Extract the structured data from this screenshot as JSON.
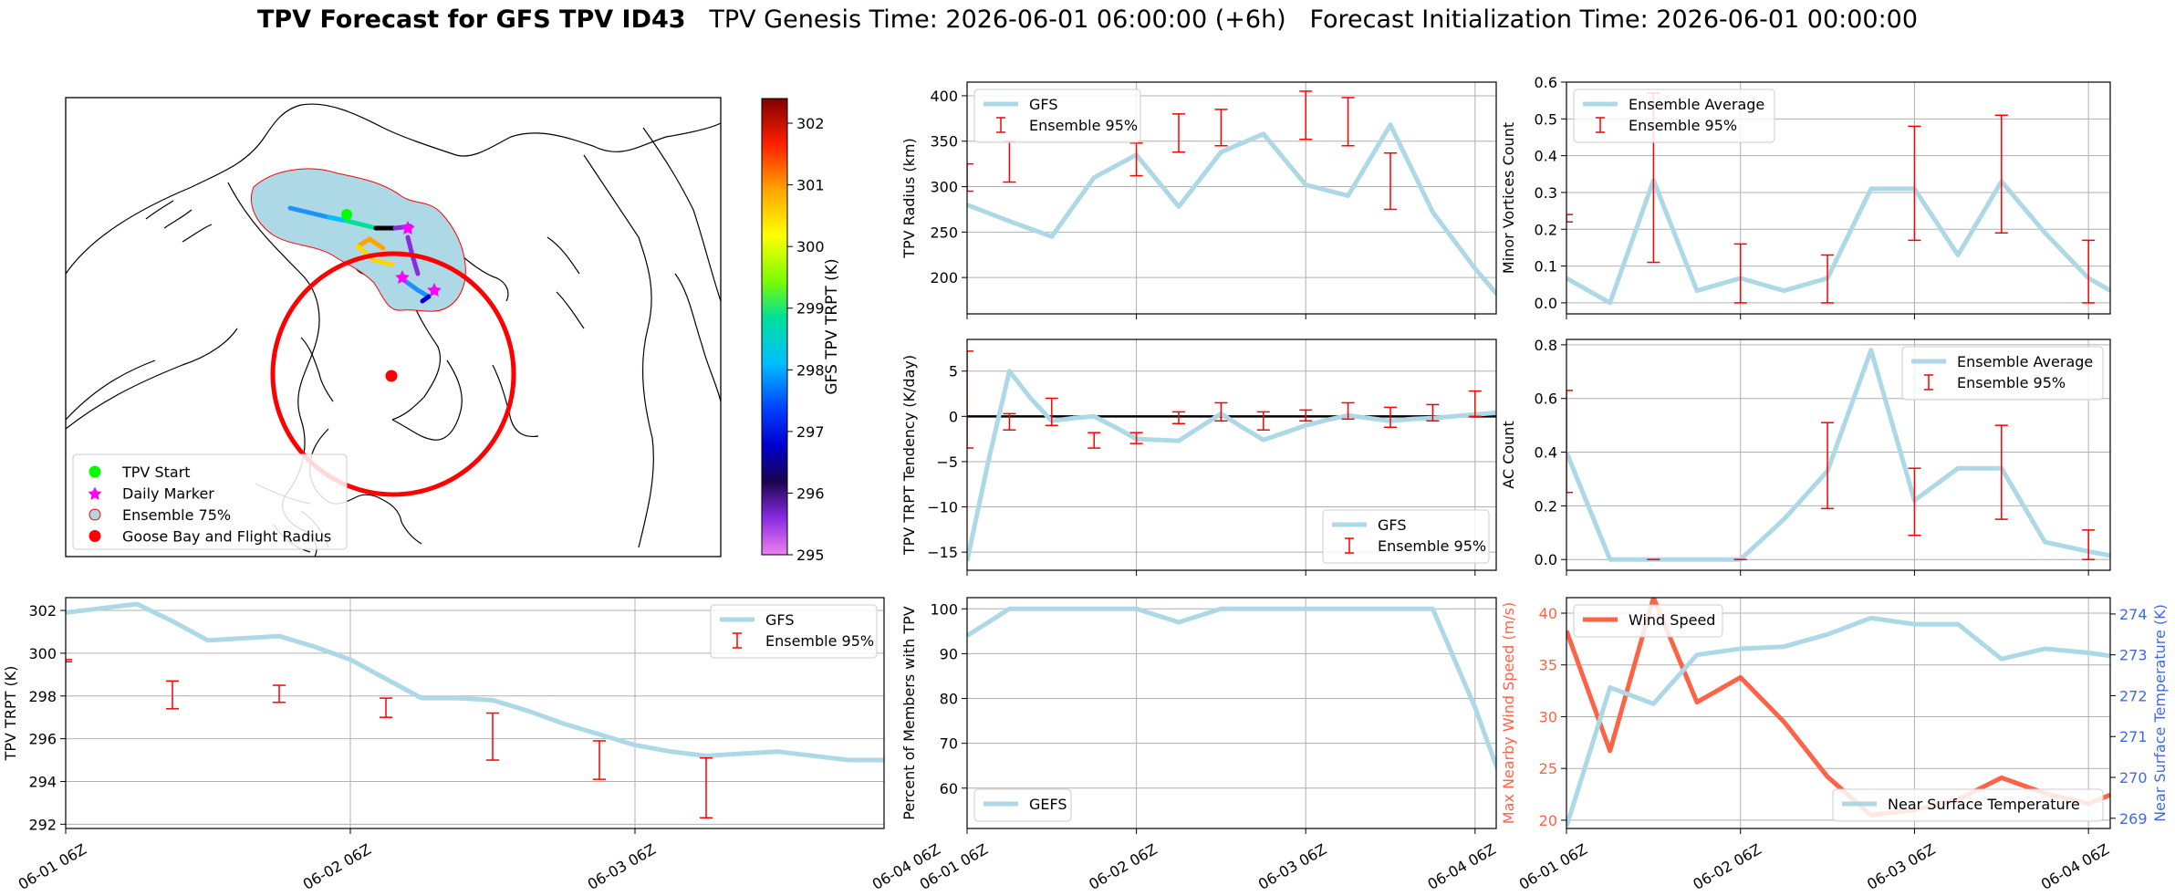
{
  "figure": {
    "title_bold": "TPV Forecast for GFS TPV ID43",
    "title_rest": "   TPV Genesis Time: 2026-06-01 06:00:00 (+6h)   Forecast Initialization Time: 2026-06-01 00:00:00"
  },
  "map": {
    "colorbar_label": "GFS TPV TRPT (K)",
    "colorbar_ticks": [
      "302",
      "301",
      "300",
      "299",
      "298",
      "297",
      "296",
      "295"
    ],
    "colorbar_range": [
      295,
      302.4
    ],
    "legend": [
      {
        "label": "TPV Start",
        "color": "#00ff00",
        "marker": "circle"
      },
      {
        "label": "Daily Marker",
        "color": "#ff00ff",
        "marker": "star"
      },
      {
        "label": "Ensemble 75%",
        "color": "#add8e6",
        "marker": "ring"
      },
      {
        "label": "Goose Bay and Flight Radius",
        "color": "#ff0000",
        "marker": "circle"
      }
    ]
  },
  "chart_data": [
    {
      "id": "trpt",
      "type": "line",
      "ylabel": "TPV TRPT (K)",
      "ylim": [
        291.8,
        302.6
      ],
      "yticks": [
        292,
        294,
        296,
        298,
        300,
        302
      ],
      "xticks": [
        "06-01 06Z",
        "06-02 06Z",
        "06-03 06Z",
        "06-04 06Z"
      ],
      "xlim": [
        0,
        11.5
      ],
      "legend": {
        "position": "top-right",
        "line": "GFS",
        "errorbar": "Ensemble 95%"
      },
      "series": [
        {
          "name": "GFS",
          "color": "#add8e6",
          "x": [
            0,
            0.5,
            1,
            1.5,
            2,
            2.5,
            3,
            3.5,
            4,
            4.5,
            5,
            5.5,
            6,
            6.5,
            7,
            7.5,
            8,
            8.5,
            9,
            9.5,
            10,
            10.5,
            11,
            11.5
          ],
          "values": [
            301.9,
            302.1,
            302.3,
            301.5,
            300.6,
            300.7,
            300.8,
            300.3,
            299.7,
            298.8,
            297.9,
            297.9,
            297.8,
            297.3,
            296.7,
            296.2,
            295.7,
            295.4,
            295.2,
            295.3,
            295.4,
            295.2,
            295.0,
            295.0
          ]
        }
      ],
      "errorbars": [
        {
          "x": 0,
          "lo": 299.6,
          "hi": 299.7
        },
        {
          "x": 3,
          "lo": 297.4,
          "hi": 298.7
        },
        {
          "x": 6,
          "lo": 297.7,
          "hi": 298.5
        },
        {
          "x": 9,
          "lo": 297.0,
          "hi": 297.9
        },
        {
          "x": 12,
          "lo": 295.0,
          "hi": 297.2
        },
        {
          "x": 15,
          "lo": 294.1,
          "hi": 295.9
        },
        {
          "x": 18,
          "lo": 292.3,
          "hi": 295.1
        }
      ]
    },
    {
      "id": "radius",
      "type": "line",
      "ylabel": "TPV Radius (km)",
      "ylim": [
        160,
        415
      ],
      "yticks": [
        200,
        250,
        300,
        350,
        400
      ],
      "xlim": [
        0,
        12.5
      ],
      "legend": {
        "position": "top-left",
        "line": "GFS",
        "errorbar": "Ensemble 95%"
      },
      "series": [
        {
          "name": "GFS",
          "color": "#add8e6",
          "x": [
            0,
            1,
            2,
            3,
            4,
            5,
            6,
            7,
            8,
            9,
            10,
            11,
            12,
            13
          ],
          "values": [
            280,
            262,
            245,
            310,
            335,
            278,
            338,
            358,
            302,
            290,
            368,
            272,
            210,
            155
          ]
        }
      ],
      "errorbars": [
        {
          "x": 0,
          "lo": 295,
          "hi": 325
        },
        {
          "x": 1,
          "lo": 305,
          "hi": 350
        },
        {
          "x": 4,
          "lo": 312,
          "hi": 348
        },
        {
          "x": 5,
          "lo": 338,
          "hi": 380
        },
        {
          "x": 6,
          "lo": 345,
          "hi": 385
        },
        {
          "x": 8,
          "lo": 352,
          "hi": 405
        },
        {
          "x": 9,
          "lo": 345,
          "hi": 398
        },
        {
          "x": 10,
          "lo": 275,
          "hi": 337
        }
      ]
    },
    {
      "id": "tendency",
      "type": "line",
      "ylabel": "TPV TRPT Tendency (K/day)",
      "ylim": [
        -17,
        8.5
      ],
      "yticks": [
        -15,
        -10,
        -5,
        0,
        5
      ],
      "xlim": [
        0,
        12.5
      ],
      "legend": {
        "position": "bottom-right",
        "line": "GFS",
        "errorbar": "Ensemble 95%"
      },
      "series": [
        {
          "name": "GFS",
          "color": "#add8e6",
          "x": [
            0,
            0.5,
            1,
            1.5,
            2,
            2.5,
            3,
            3.5,
            4,
            4.5,
            5,
            5.5,
            6,
            6.5,
            7,
            7.5,
            8,
            8.5,
            9,
            9.5,
            10,
            10.5,
            11,
            11.5,
            12,
            12.5
          ],
          "values": [
            -16,
            -5,
            5,
            2,
            -0.5,
            -0.2,
            0,
            -1.2,
            -2.5,
            -2.6,
            -2.7,
            -1.2,
            0.3,
            -1.2,
            -2.6,
            -1.8,
            -1,
            -0.4,
            0.1,
            -0.2,
            -0.5,
            -0.3,
            -0.2,
            0,
            0.2,
            0.4
          ]
        }
      ],
      "errorbars": [
        {
          "x": 0,
          "lo": -3.5,
          "hi": 7.2
        },
        {
          "x": 1,
          "lo": -1.5,
          "hi": 0.3
        },
        {
          "x": 2,
          "lo": -1.0,
          "hi": 2.0
        },
        {
          "x": 3,
          "lo": -3.5,
          "hi": -1.8
        },
        {
          "x": 4,
          "lo": -3.0,
          "hi": -1.8
        },
        {
          "x": 5,
          "lo": -0.8,
          "hi": 0.5
        },
        {
          "x": 6,
          "lo": -0.5,
          "hi": 1.5
        },
        {
          "x": 7,
          "lo": -1.5,
          "hi": 0.5
        },
        {
          "x": 8,
          "lo": -0.5,
          "hi": 0.7
        },
        {
          "x": 9,
          "lo": -0.3,
          "hi": 1.5
        },
        {
          "x": 10,
          "lo": -1.2,
          "hi": 1.0
        },
        {
          "x": 11,
          "lo": -0.5,
          "hi": 1.3
        },
        {
          "x": 12,
          "lo": 0.0,
          "hi": 2.8
        }
      ]
    },
    {
      "id": "percent",
      "type": "line",
      "ylabel": "Percent of Members with TPV",
      "ylim": [
        51,
        102.5
      ],
      "yticks": [
        60,
        70,
        80,
        90,
        100
      ],
      "xlim": [
        0,
        12.5
      ],
      "legend": {
        "position": "bottom-left",
        "line": "GEFS"
      },
      "series": [
        {
          "name": "GEFS",
          "color": "#add8e6",
          "x": [
            0,
            1,
            2,
            3,
            4,
            5,
            6,
            7,
            8,
            9,
            10,
            11,
            12,
            13
          ],
          "values": [
            94,
            100,
            100,
            100,
            100,
            97,
            100,
            100,
            100,
            100,
            100,
            100,
            78,
            52
          ]
        }
      ],
      "errorbars": []
    },
    {
      "id": "minor",
      "type": "line",
      "ylabel": "Minor Vortices Count",
      "ylim": [
        -0.03,
        0.6
      ],
      "yticks": [
        0.0,
        0.1,
        0.2,
        0.3,
        0.4,
        0.5,
        0.6
      ],
      "xlim": [
        0,
        12.5
      ],
      "legend": {
        "position": "top-left",
        "line": "Ensemble Average",
        "errorbar": "Ensemble 95%"
      },
      "series": [
        {
          "name": "Ensemble Average",
          "color": "#add8e6",
          "x": [
            0,
            1,
            2,
            3,
            4,
            5,
            6,
            7,
            8,
            9,
            10,
            11,
            12,
            13
          ],
          "values": [
            0.067,
            0,
            0.333,
            0.033,
            0.067,
            0.033,
            0.067,
            0.31,
            0.31,
            0.13,
            0.33,
            0.19,
            0.067,
            0
          ]
        }
      ],
      "errorbars": [
        {
          "x": 0,
          "lo": 0.22,
          "hi": 0.24
        },
        {
          "x": 2,
          "lo": 0.11,
          "hi": 0.57
        },
        {
          "x": 4,
          "lo": 0.0,
          "hi": 0.16
        },
        {
          "x": 6,
          "lo": 0.0,
          "hi": 0.13
        },
        {
          "x": 8,
          "lo": 0.17,
          "hi": 0.48
        },
        {
          "x": 10,
          "lo": 0.19,
          "hi": 0.51
        },
        {
          "x": 12,
          "lo": 0.0,
          "hi": 0.17
        }
      ]
    },
    {
      "id": "ac",
      "type": "line",
      "ylabel": "AC Count",
      "ylim": [
        -0.04,
        0.82
      ],
      "yticks": [
        0.0,
        0.2,
        0.4,
        0.6,
        0.8
      ],
      "xlim": [
        0,
        12.5
      ],
      "legend": {
        "position": "top-right",
        "line": "Ensemble Average",
        "errorbar": "Ensemble 95%"
      },
      "series": [
        {
          "name": "Ensemble Average",
          "color": "#add8e6",
          "x": [
            0,
            1,
            2,
            3,
            4,
            5,
            6,
            7,
            8,
            9,
            10,
            11,
            12,
            13
          ],
          "values": [
            0.4,
            0,
            0,
            0,
            0,
            0.15,
            0.33,
            0.78,
            0.22,
            0.34,
            0.34,
            0.065,
            0.03,
            0
          ]
        }
      ],
      "errorbars": [
        {
          "x": 0,
          "lo": 0.25,
          "hi": 0.63
        },
        {
          "x": 2,
          "lo": 0.0,
          "hi": 0.0
        },
        {
          "x": 4,
          "lo": 0.0,
          "hi": 0.0
        },
        {
          "x": 6,
          "lo": 0.19,
          "hi": 0.51
        },
        {
          "x": 8,
          "lo": 0.09,
          "hi": 0.34
        },
        {
          "x": 10,
          "lo": 0.15,
          "hi": 0.5
        },
        {
          "x": 12,
          "lo": 0.0,
          "hi": 0.11
        }
      ]
    },
    {
      "id": "wind",
      "type": "line",
      "ylabel": "Max Nearby Wind Speed (m/s)",
      "ylabel_right": "Near Surface Temperature (K)",
      "ylim": [
        19.2,
        41.5
      ],
      "yticks": [
        20,
        25,
        30,
        35,
        40
      ],
      "ylim_right": [
        268.75,
        274.4
      ],
      "yticks_right": [
        269,
        270,
        271,
        272,
        273,
        274
      ],
      "xlim": [
        0,
        12.5
      ],
      "left_color": "#ff6347",
      "right_color": "#4169e1",
      "legend_left": {
        "position": "top-left",
        "line": "Wind Speed"
      },
      "legend_right": {
        "position": "bottom-right",
        "line": "Near Surface Temperature"
      },
      "series": [
        {
          "name": "Wind Speed",
          "color": "#ff6347",
          "axis": "left",
          "x": [
            0,
            1,
            2,
            3,
            4,
            5,
            6,
            7,
            8,
            9,
            10,
            11,
            12,
            13
          ],
          "values": [
            38.3,
            26.7,
            41.5,
            31.4,
            33.8,
            29.5,
            24.2,
            20.5,
            21.0,
            22.0,
            24.1,
            22.6,
            21.6,
            23.3
          ]
        },
        {
          "name": "Near Surface Temperature",
          "color": "#add8e6",
          "axis": "right",
          "x": [
            0,
            1,
            2,
            3,
            4,
            5,
            6,
            7,
            8,
            9,
            10,
            11,
            12,
            13
          ],
          "values": [
            268.8,
            272.2,
            271.8,
            273.0,
            273.15,
            273.2,
            273.5,
            273.9,
            273.75,
            273.75,
            272.9,
            273.15,
            273.05,
            272.9
          ]
        }
      ]
    }
  ]
}
